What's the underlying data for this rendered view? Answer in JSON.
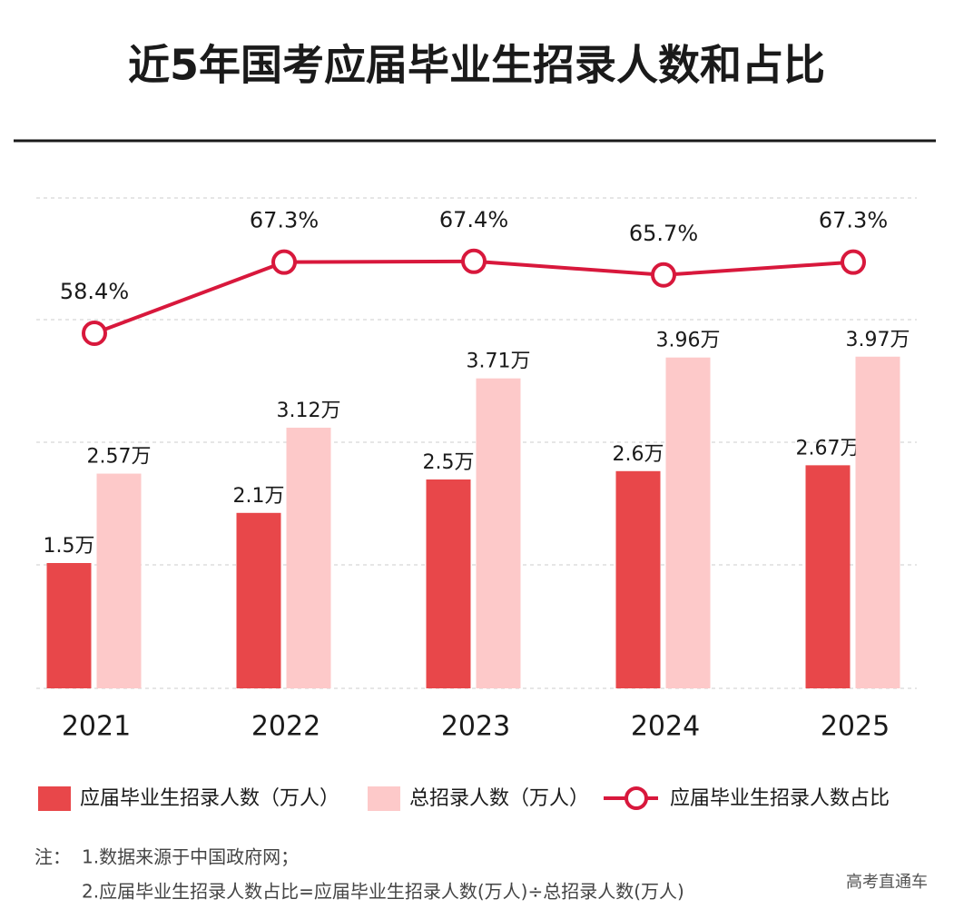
{
  "chart_data": {
    "type": "bar",
    "title": "近5年国考应届毕业生招录人数和占比",
    "categories": [
      "2021",
      "2022",
      "2023",
      "2024",
      "2025"
    ],
    "series": [
      {
        "name": "应届毕业生招录人数（万人）",
        "color": "#e8474a",
        "values": [
          1.5,
          2.1,
          2.5,
          2.6,
          2.67
        ],
        "value_labels": [
          "1.5万",
          "2.1万",
          "2.5万",
          "2.6万",
          "2.67万"
        ]
      },
      {
        "name": "总招录人数（万人）",
        "color": "#fdc9c9",
        "values": [
          2.57,
          3.12,
          3.71,
          3.96,
          3.97
        ],
        "value_labels": [
          "2.57万",
          "3.12万",
          "3.71万",
          "3.96万",
          "3.97万"
        ]
      },
      {
        "name": "应届毕业生招录人数占比",
        "type": "line",
        "color": "#d8183c",
        "values": [
          58.4,
          67.3,
          67.4,
          65.7,
          67.3
        ],
        "value_labels": [
          "58.4%",
          "67.3%",
          "67.4%",
          "65.7%",
          "67.3%"
        ]
      }
    ],
    "grid": true
  },
  "notes": {
    "prefix": "注：",
    "lines": [
      "1.数据来源于中国政府网；",
      "2.应届毕业生招录人数占比=应届毕业生招录人数(万人)÷总招录人数(万人)"
    ]
  },
  "source": "高考直通车"
}
